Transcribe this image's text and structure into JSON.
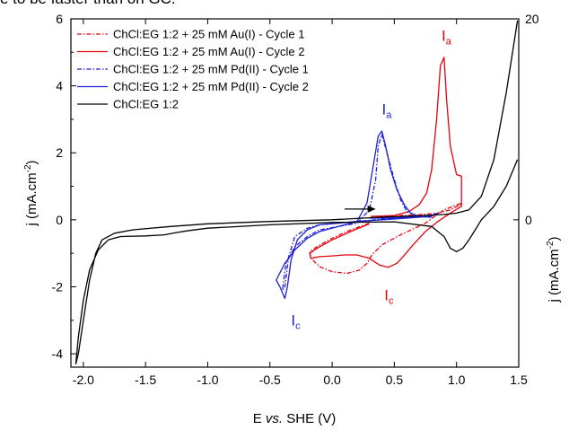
{
  "page": {
    "top_text": "e to be faster than on GC."
  },
  "chart_data": {
    "type": "line",
    "xlabel_main": "E ",
    "xlabel_italic": "vs.",
    "xlabel_rest": " SHE (V)",
    "ylabel_main": "j (mA.cm",
    "ylabel_sup": "-2",
    "ylabel_close": ")",
    "y2label_main": "j (mA.cm",
    "y2label_sup": "-2",
    "y2label_close": ")",
    "xlim": [
      -2.1,
      1.5
    ],
    "ylim": [
      -4.4,
      6
    ],
    "x_ticks": [
      -2.0,
      -1.5,
      -1.0,
      -0.5,
      0.0,
      0.5,
      1.0,
      1.5
    ],
    "x_tick_labels": [
      "-2.0",
      "-1.5",
      "-1.0",
      "-0.5",
      "0.0",
      "0.5",
      "1.0",
      "1.5"
    ],
    "y_ticks": [
      -4,
      -2,
      0,
      2,
      4,
      6
    ],
    "y_tick_labels": [
      "-4",
      "-2",
      "0",
      "2",
      "4",
      "6"
    ],
    "y2_ticks": [
      0,
      20
    ],
    "y2_tick_labels": [
      "0",
      "20"
    ],
    "legend_position": "top-left",
    "series": [
      {
        "name": "ChCl:EG 1:2 + 25 mM Au(I) - Cycle 1",
        "color": "#e8000b",
        "dash": "dashdot",
        "x": [
          0.31,
          0.5,
          0.7,
          0.85,
          0.95,
          1.03,
          1.04,
          0.9,
          0.75,
          0.55,
          0.4,
          0.32,
          0.28,
          0.22,
          0.12,
          0.0,
          -0.1,
          -0.17,
          -0.18,
          -0.12,
          0.0,
          0.15,
          0.3
        ],
        "y": [
          0.1,
          0.12,
          0.15,
          0.2,
          0.3,
          0.45,
          0.5,
          0.3,
          -0.1,
          -0.45,
          -0.75,
          -1.05,
          -1.3,
          -1.5,
          -1.6,
          -1.55,
          -1.4,
          -1.15,
          -0.95,
          -0.8,
          -0.55,
          -0.3,
          -0.1
        ]
      },
      {
        "name": "ChCl:EG 1:2 + 25 mM Au(I) - Cycle 2",
        "color": "#e8000b",
        "dash": "solid",
        "x": [
          0.31,
          0.5,
          0.62,
          0.7,
          0.76,
          0.8,
          0.84,
          0.87,
          0.9,
          0.92,
          0.95,
          1.0,
          1.04,
          1.04,
          0.95,
          0.85,
          0.75,
          0.65,
          0.57,
          0.52,
          0.45,
          0.38,
          0.3,
          0.2,
          0.1,
          0.0,
          -0.1,
          -0.17,
          -0.18,
          -0.12,
          0.0,
          0.15,
          0.3
        ],
        "y": [
          0.1,
          0.13,
          0.25,
          0.45,
          0.8,
          1.5,
          3.0,
          4.6,
          4.85,
          3.6,
          2.2,
          1.35,
          1.3,
          0.4,
          0.2,
          -0.05,
          -0.35,
          -0.75,
          -1.1,
          -1.3,
          -1.42,
          -1.35,
          -1.15,
          -1.05,
          -1.05,
          -1.08,
          -1.1,
          -1.15,
          -1.0,
          -0.85,
          -0.6,
          -0.35,
          -0.12
        ]
      },
      {
        "name": "ChCl:EG 1:2 + 25 mM Pd(II) - Cycle 1",
        "color": "#1f1fd6",
        "dash": "dashdot",
        "x": [
          0.3,
          0.5,
          0.65,
          0.8,
          0.85,
          0.8,
          0.6,
          0.4,
          0.2,
          0.05,
          -0.1,
          -0.2,
          -0.3,
          -0.35,
          -0.38,
          -0.4,
          -0.37,
          -0.3,
          -0.2,
          -0.1,
          0.05,
          0.2,
          0.3,
          0.35,
          0.37,
          0.4,
          0.44,
          0.5,
          0.55,
          0.6,
          0.68,
          0.75,
          0.8
        ],
        "y": [
          0.05,
          0.06,
          0.08,
          0.1,
          0.2,
          0.12,
          0.08,
          0.02,
          -0.05,
          -0.1,
          -0.15,
          -0.25,
          -0.5,
          -1.1,
          -2.0,
          -2.1,
          -1.3,
          -0.8,
          -0.5,
          -0.3,
          -0.2,
          -0.1,
          0.3,
          1.2,
          2.2,
          2.55,
          2.0,
          1.2,
          0.6,
          0.25,
          0.12,
          0.08,
          0.08
        ]
      },
      {
        "name": "ChCl:EG 1:2 + 25 mM Pd(II) - Cycle 2",
        "color": "#1f1fd6",
        "dash": "solid",
        "x": [
          0.33,
          0.5,
          0.65,
          0.8,
          0.85,
          0.78,
          0.6,
          0.4,
          0.2,
          0.05,
          -0.1,
          -0.2,
          -0.28,
          -0.33,
          -0.36,
          -0.38,
          -0.42,
          -0.45,
          -0.38,
          -0.3,
          -0.2,
          -0.1,
          0.05,
          0.2,
          0.28,
          0.33,
          0.37,
          0.4,
          0.43,
          0.47,
          0.52,
          0.58,
          0.63,
          0.7,
          0.8
        ],
        "y": [
          0.05,
          0.06,
          0.08,
          0.12,
          0.2,
          0.1,
          0.05,
          0.0,
          -0.05,
          -0.1,
          -0.15,
          -0.3,
          -0.6,
          -1.2,
          -2.0,
          -2.35,
          -2.0,
          -1.8,
          -1.3,
          -0.9,
          -0.55,
          -0.35,
          -0.2,
          -0.05,
          0.5,
          1.6,
          2.5,
          2.65,
          2.2,
          1.5,
          0.9,
          0.45,
          0.2,
          0.1,
          0.08
        ]
      },
      {
        "name": "ChCl:EG 1:2",
        "color": "#000000",
        "dash": "solid",
        "x": [
          1.49,
          1.4,
          1.3,
          1.2,
          1.1,
          1.0,
          0.9,
          0.7,
          0.4,
          0.0,
          -0.5,
          -1.0,
          -1.3,
          -1.6,
          -1.75,
          -1.85,
          -1.9,
          -1.95,
          -2.0,
          -2.04,
          -2.06,
          -2.04,
          -2.0,
          -1.95,
          -1.88,
          -1.8,
          -1.7,
          -1.5,
          -1.35,
          -1.25,
          -1.15,
          -1.0,
          -0.5,
          0.0,
          0.5,
          0.8,
          0.9,
          0.95,
          1.0,
          1.05,
          1.1,
          1.15,
          1.2,
          1.3,
          1.4,
          1.49
        ],
        "y": [
          5.95,
          3.8,
          1.8,
          0.7,
          0.3,
          0.2,
          0.16,
          0.12,
          0.08,
          0.0,
          -0.05,
          -0.12,
          -0.2,
          -0.3,
          -0.4,
          -0.6,
          -1.0,
          -1.8,
          -3.0,
          -4.0,
          -4.3,
          -3.5,
          -2.4,
          -1.5,
          -0.9,
          -0.6,
          -0.5,
          -0.48,
          -0.45,
          -0.38,
          -0.32,
          -0.25,
          -0.15,
          -0.08,
          -0.06,
          -0.2,
          -0.5,
          -0.85,
          -0.95,
          -0.85,
          -0.6,
          -0.3,
          0.0,
          0.4,
          1.0,
          1.8
        ]
      }
    ],
    "annotations": [
      {
        "main": "I",
        "sub": "a",
        "x": 0.88,
        "y": 5.35,
        "color": "#e8000b"
      },
      {
        "main": "I",
        "sub": "c",
        "x": 0.42,
        "y": -2.4,
        "color": "#e8000b"
      },
      {
        "main": "I",
        "sub": "a",
        "x": 0.4,
        "y": 3.15,
        "color": "#1f1fd6"
      },
      {
        "main": "I",
        "sub": "c",
        "x": -0.33,
        "y": -3.15,
        "color": "#1f1fd6"
      }
    ],
    "arrow": {
      "x1": 0.1,
      "y1": 0.32,
      "x2": 0.35,
      "y2": 0.32
    }
  }
}
